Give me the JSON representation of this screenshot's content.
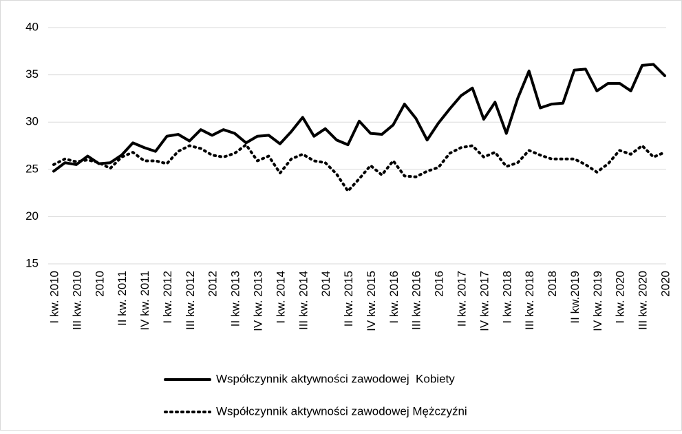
{
  "chart_data": {
    "type": "line",
    "categories": [
      "I kw. 2010",
      null,
      "III kw. 2010",
      null,
      "2010",
      null,
      "II kw. 2011",
      null,
      "IV kw. 2011",
      null,
      "I kw. 2012",
      null,
      "III kw. 2012",
      null,
      "2012",
      null,
      "II kw. 2013",
      null,
      "IV kw. 2013",
      null,
      "I kw. 2014",
      null,
      "III kw. 2014",
      null,
      "2014",
      null,
      "II kw. 2015",
      null,
      "IV kw. 2015",
      null,
      "I kw. 2016",
      null,
      "III kw. 2016",
      null,
      "2016",
      null,
      "II kw. 2017",
      null,
      "IV kw. 2017",
      null,
      "I kw. 2018",
      null,
      "III kw. 2018",
      null,
      "2018",
      null,
      "II kw.2019",
      null,
      "IV kw. 2019",
      null,
      "I kw. 2020",
      null,
      "III kw. 2020",
      null,
      "2020"
    ],
    "series": [
      {
        "name": "Współczynnik aktywności zawodowej  Kobiety",
        "color": "#000000",
        "dash": "solid",
        "values": [
          24.8,
          25.7,
          25.5,
          26.4,
          25.6,
          25.7,
          26.5,
          27.8,
          27.3,
          26.9,
          28.5,
          28.7,
          28.0,
          29.2,
          28.6,
          29.2,
          28.8,
          27.8,
          28.5,
          28.6,
          27.7,
          29.0,
          30.5,
          28.5,
          29.3,
          28.1,
          27.6,
          30.1,
          28.8,
          28.7,
          29.7,
          31.9,
          30.4,
          28.1,
          29.9,
          31.4,
          32.8,
          33.6,
          30.3,
          32.1,
          28.8,
          32.5,
          35.4,
          31.5,
          31.9,
          32.0,
          35.5,
          35.6,
          33.3,
          34.1,
          34.1,
          33.3,
          36.0,
          36.1,
          34.9
        ]
      },
      {
        "name": "Współczynnik aktywności zawodowej Mężczyźni",
        "color": "#000000",
        "dash": "dotted",
        "values": [
          25.5,
          26.1,
          25.8,
          26.0,
          25.7,
          25.1,
          26.3,
          26.8,
          25.9,
          25.9,
          25.6,
          26.9,
          27.5,
          27.2,
          26.5,
          26.3,
          26.7,
          27.6,
          25.9,
          26.4,
          24.6,
          26.1,
          26.6,
          25.9,
          25.7,
          24.5,
          22.7,
          24.0,
          25.4,
          24.4,
          25.9,
          24.3,
          24.2,
          24.8,
          25.2,
          26.7,
          27.3,
          27.5,
          26.3,
          26.8,
          25.3,
          25.7,
          27.0,
          26.5,
          26.1,
          26.1,
          26.1,
          25.5,
          24.7,
          25.6,
          27.0,
          26.6,
          27.5,
          26.3,
          26.8
        ]
      }
    ],
    "ylim": [
      15,
      40
    ],
    "yticks": [
      15,
      20,
      25,
      30,
      35,
      40
    ],
    "grid": true,
    "legend": "bottom"
  }
}
